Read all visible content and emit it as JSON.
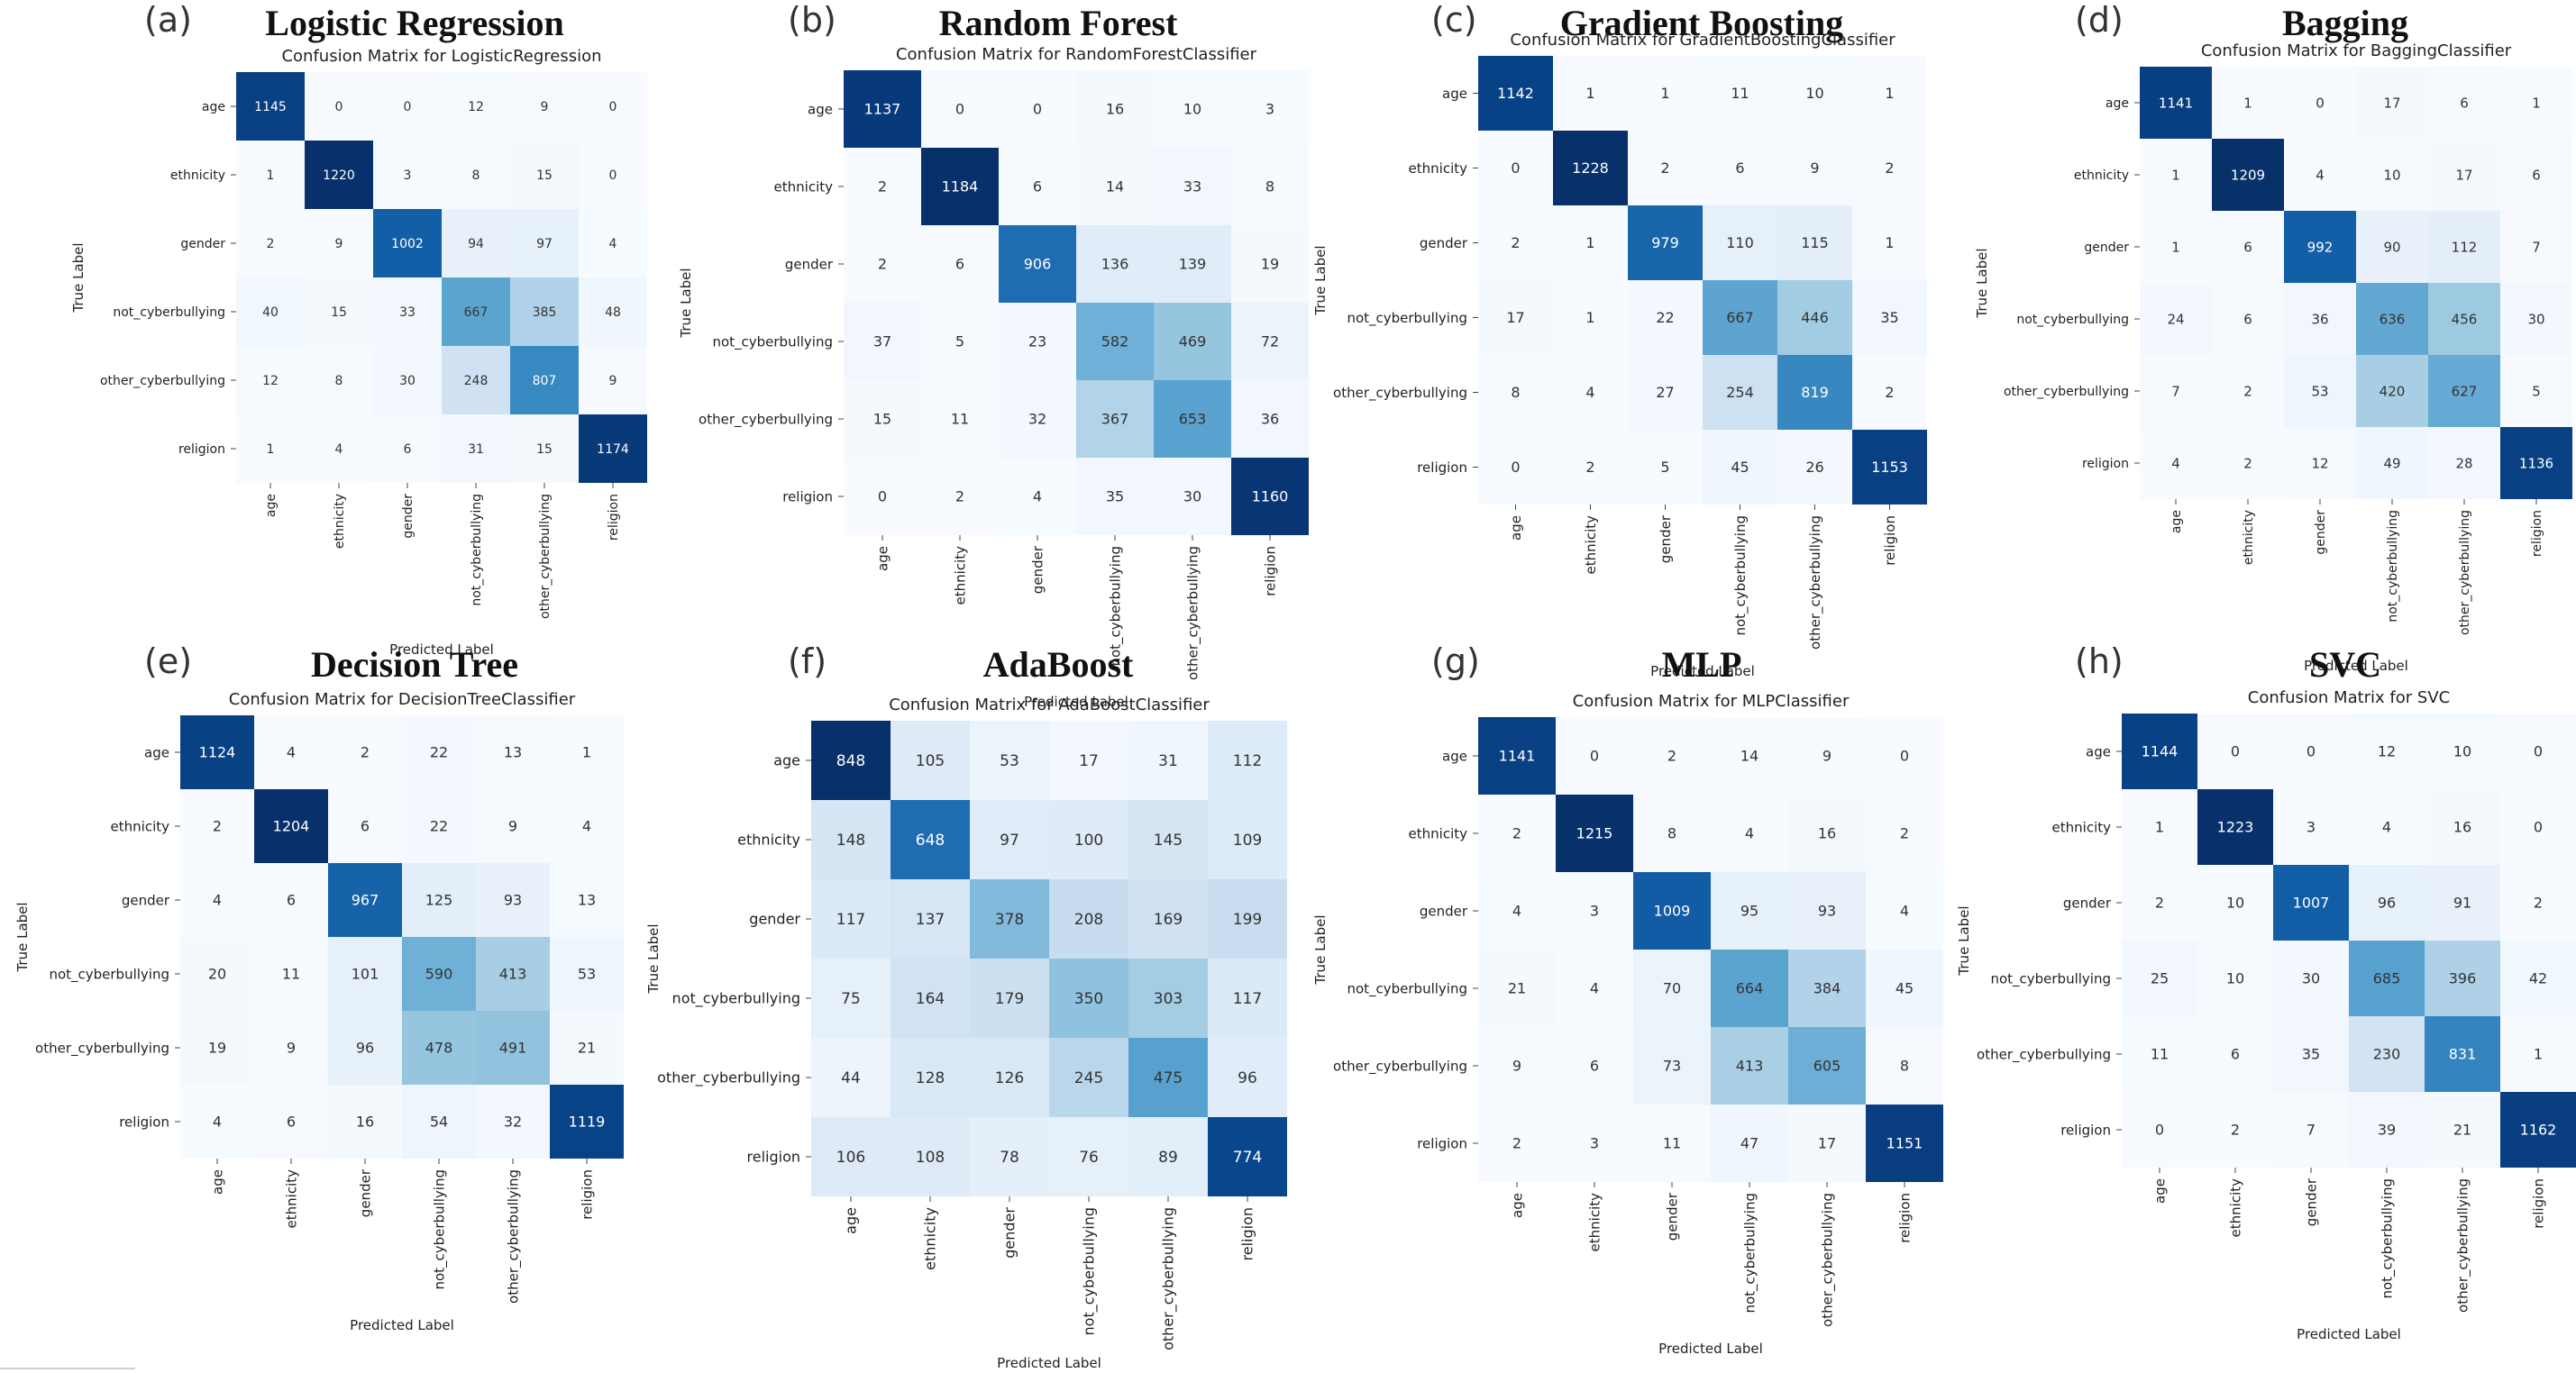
{
  "chart_data": [
    {
      "type": "heatmap",
      "panel_letter": "(a)",
      "title": "Logistic Regression",
      "subtitle": "Confusion Matrix for LogisticRegression",
      "xlabel": "Predicted Label",
      "ylabel": "True Label",
      "categories": [
        "age",
        "ethnicity",
        "gender",
        "not_cyberbullying",
        "other_cyberbullying",
        "religion"
      ],
      "matrix": [
        [
          1145,
          0,
          0,
          12,
          9,
          0
        ],
        [
          1,
          1220,
          3,
          8,
          15,
          0
        ],
        [
          2,
          9,
          1002,
          94,
          97,
          4
        ],
        [
          40,
          15,
          33,
          667,
          385,
          48
        ],
        [
          12,
          8,
          30,
          248,
          807,
          9
        ],
        [
          1,
          4,
          6,
          31,
          15,
          1174
        ]
      ],
      "colormap": "Blues"
    },
    {
      "type": "heatmap",
      "panel_letter": "(b)",
      "title": "Random Forest",
      "subtitle": "Confusion Matrix for RandomForestClassifier",
      "xlabel": "Predicted Label",
      "ylabel": "True Label",
      "categories": [
        "age",
        "ethnicity",
        "gender",
        "not_cyberbullying",
        "other_cyberbullying",
        "religion"
      ],
      "matrix": [
        [
          1137,
          0,
          0,
          16,
          10,
          3
        ],
        [
          2,
          1184,
          6,
          14,
          33,
          8
        ],
        [
          2,
          6,
          906,
          136,
          139,
          19
        ],
        [
          37,
          5,
          23,
          582,
          469,
          72
        ],
        [
          15,
          11,
          32,
          367,
          653,
          36
        ],
        [
          0,
          2,
          4,
          35,
          30,
          1160
        ]
      ],
      "colormap": "Blues"
    },
    {
      "type": "heatmap",
      "panel_letter": "(c)",
      "title": "Gradient Boosting",
      "subtitle": "Confusion Matrix for GradientBoostingClassifier",
      "xlabel": "Predicted Label",
      "ylabel": "True Label",
      "categories": [
        "age",
        "ethnicity",
        "gender",
        "not_cyberbullying",
        "other_cyberbullying",
        "religion"
      ],
      "matrix": [
        [
          1142,
          1,
          1,
          11,
          10,
          1
        ],
        [
          0,
          1228,
          2,
          6,
          9,
          2
        ],
        [
          2,
          1,
          979,
          110,
          115,
          1
        ],
        [
          17,
          1,
          22,
          667,
          446,
          35
        ],
        [
          8,
          4,
          27,
          254,
          819,
          2
        ],
        [
          0,
          2,
          5,
          45,
          26,
          1153
        ]
      ],
      "colormap": "Blues"
    },
    {
      "type": "heatmap",
      "panel_letter": "(d)",
      "title": "Bagging",
      "subtitle": "Confusion Matrix for BaggingClassifier",
      "xlabel": "Predicted Label",
      "ylabel": "True Label",
      "categories": [
        "age",
        "ethnicity",
        "gender",
        "not_cyberbullying",
        "other_cyberbullying",
        "religion"
      ],
      "matrix": [
        [
          1141,
          1,
          0,
          17,
          6,
          1
        ],
        [
          1,
          1209,
          4,
          10,
          17,
          6
        ],
        [
          1,
          6,
          992,
          90,
          112,
          7
        ],
        [
          24,
          6,
          36,
          636,
          456,
          30
        ],
        [
          7,
          2,
          53,
          420,
          627,
          5
        ],
        [
          4,
          2,
          12,
          49,
          28,
          1136
        ]
      ],
      "colormap": "Blues"
    },
    {
      "type": "heatmap",
      "panel_letter": "(e)",
      "title": "Decision Tree",
      "subtitle": "Confusion Matrix for DecisionTreeClassifier",
      "xlabel": "Predicted Label",
      "ylabel": "True Label",
      "categories": [
        "age",
        "ethnicity",
        "gender",
        "not_cyberbullying",
        "other_cyberbullying",
        "religion"
      ],
      "matrix": [
        [
          1124,
          4,
          2,
          22,
          13,
          1
        ],
        [
          2,
          1204,
          6,
          22,
          9,
          4
        ],
        [
          4,
          6,
          967,
          125,
          93,
          13
        ],
        [
          20,
          11,
          101,
          590,
          413,
          53
        ],
        [
          19,
          9,
          96,
          478,
          491,
          21
        ],
        [
          4,
          6,
          16,
          54,
          32,
          1119
        ]
      ],
      "colormap": "Blues"
    },
    {
      "type": "heatmap",
      "panel_letter": "(f)",
      "title": "AdaBoost",
      "subtitle": "Confusion Matrix for AdaBoostClassifier",
      "xlabel": "Predicted Label",
      "ylabel": "True Label",
      "categories": [
        "age",
        "ethnicity",
        "gender",
        "not_cyberbullying",
        "other_cyberbullying",
        "religion"
      ],
      "matrix": [
        [
          848,
          105,
          53,
          17,
          31,
          112
        ],
        [
          148,
          648,
          97,
          100,
          145,
          109
        ],
        [
          117,
          137,
          378,
          208,
          169,
          199
        ],
        [
          75,
          164,
          179,
          350,
          303,
          117
        ],
        [
          44,
          128,
          126,
          245,
          475,
          96
        ],
        [
          106,
          108,
          78,
          76,
          89,
          774
        ]
      ],
      "colormap": "Blues"
    },
    {
      "type": "heatmap",
      "panel_letter": "(g)",
      "title": "MLP",
      "subtitle": "Confusion Matrix for MLPClassifier",
      "xlabel": "Predicted Label",
      "ylabel": "True Label",
      "categories": [
        "age",
        "ethnicity",
        "gender",
        "not_cyberbullying",
        "other_cyberbullying",
        "religion"
      ],
      "matrix": [
        [
          1141,
          0,
          2,
          14,
          9,
          0
        ],
        [
          2,
          1215,
          8,
          4,
          16,
          2
        ],
        [
          4,
          3,
          1009,
          95,
          93,
          4
        ],
        [
          21,
          4,
          70,
          664,
          384,
          45
        ],
        [
          9,
          6,
          73,
          413,
          605,
          8
        ],
        [
          2,
          3,
          11,
          47,
          17,
          1151
        ]
      ],
      "colormap": "Blues"
    },
    {
      "type": "heatmap",
      "panel_letter": "(h)",
      "title": "SVC",
      "subtitle": "Confusion Matrix for SVC",
      "xlabel": "Predicted Label",
      "ylabel": "True Label",
      "categories": [
        "age",
        "ethnicity",
        "gender",
        "not_cyberbullying",
        "other_cyberbullying",
        "religion"
      ],
      "matrix": [
        [
          1144,
          0,
          0,
          12,
          10,
          0
        ],
        [
          1,
          1223,
          3,
          4,
          16,
          0
        ],
        [
          2,
          10,
          1007,
          96,
          91,
          2
        ],
        [
          25,
          10,
          30,
          685,
          396,
          42
        ],
        [
          11,
          6,
          35,
          230,
          831,
          1
        ],
        [
          0,
          2,
          7,
          39,
          21,
          1162
        ]
      ],
      "colormap": "Blues"
    }
  ]
}
